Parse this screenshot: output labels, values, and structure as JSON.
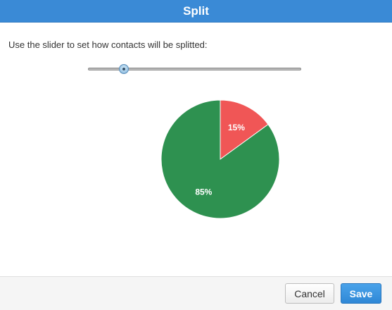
{
  "dialog": {
    "title": "Split",
    "instruction": "Use the slider to set how contacts will be splitted:"
  },
  "slider": {
    "value_percent": 15
  },
  "chart_data": {
    "type": "pie",
    "slices": [
      {
        "label": "15%",
        "value": 15,
        "color": "#f05656"
      },
      {
        "label": "85%",
        "value": 85,
        "color": "#2e9150"
      }
    ]
  },
  "footer": {
    "cancel_label": "Cancel",
    "save_label": "Save"
  },
  "colors": {
    "title_bar": "#3a8ad6",
    "save_button": "#3592de"
  }
}
